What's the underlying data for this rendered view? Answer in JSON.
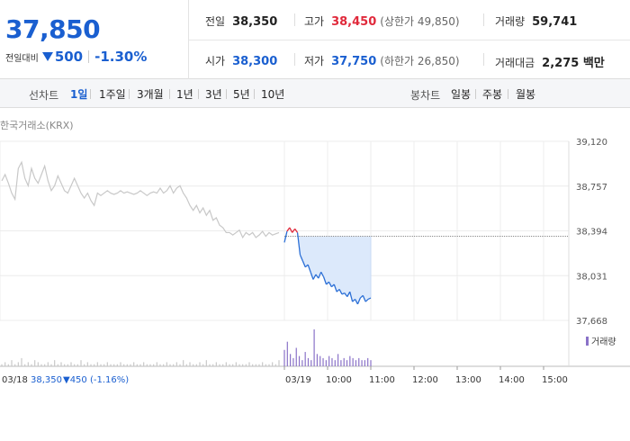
{
  "quote": {
    "price": "37,850",
    "change_label": "전일대비",
    "change_abs": "500",
    "change_pct": "-1.30%",
    "prev_close_label": "전일",
    "prev_close": "38,350",
    "high_label": "고가",
    "high": "38,450",
    "upper_limit": "(상한가 49,850)",
    "volume_label": "거래량",
    "volume": "59,741",
    "open_label": "시가",
    "open": "38,300",
    "low_label": "저가",
    "low": "37,750",
    "lower_limit": "(하한가 26,850)",
    "turnover_label": "거래대금",
    "turnover": "2,275 백만",
    "colors": {
      "up": "#e0293b",
      "down": "#1a5fd0"
    }
  },
  "tabs": {
    "line_label": "선차트",
    "line_periods": [
      "1일",
      "1주일",
      "3개월",
      "1년",
      "3년",
      "5년",
      "10년"
    ],
    "line_active": "1일",
    "candle_label": "봉차트",
    "candle_periods": [
      "일봉",
      "주봉",
      "월봉"
    ]
  },
  "chart": {
    "source": "한국거래소(KRX)",
    "volume_legend": "거래량",
    "footer_date": "03/18",
    "footer_price": "38,350",
    "footer_change": "▼450 (-1.16%)"
  },
  "chart_data": {
    "type": "line",
    "title": "",
    "xlabel": "",
    "ylabel": "",
    "y_ticks": [
      "39,120",
      "38,757",
      "38,394",
      "38,031",
      "37,668"
    ],
    "y_tick_values": [
      39120,
      38757,
      38394,
      38031,
      37668
    ],
    "ylim": [
      37668,
      39120
    ],
    "x_ticks": [
      "03/18",
      "03/19",
      "10:00",
      "11:00",
      "12:00",
      "13:00",
      "14:00",
      "15:00"
    ],
    "reference_price": 38350,
    "colors": {
      "prev_day": "#c8c8c8",
      "today": "#2b6fd6",
      "today_above_ref": "#e0293b",
      "fill": "#dce9fb",
      "volume": "#8a72c8"
    },
    "series": [
      {
        "values": [
          38800,
          38850,
          38780,
          38700,
          38650,
          38900,
          38950,
          38820,
          38760,
          38900,
          38820,
          38780,
          38850,
          38920,
          38800,
          38720,
          38760,
          38840,
          38780,
          38720,
          38700,
          38760,
          38820,
          38760,
          38700,
          38660,
          38700,
          38640,
          38600,
          38700,
          38680,
          38700,
          38720,
          38700,
          38690,
          38700,
          38720,
          38700,
          38710,
          38700,
          38690,
          38700,
          38720,
          38700,
          38680,
          38700,
          38710,
          38700,
          38740,
          38700,
          38720,
          38760,
          38700,
          38740,
          38760,
          38700,
          38660,
          38600,
          38560,
          38600,
          38540,
          38580,
          38520,
          38560,
          38480,
          38500,
          38440,
          38420,
          38380,
          38380,
          38360,
          38380,
          38400,
          38340,
          38380,
          38360,
          38380,
          38340,
          38360,
          38390,
          38350,
          38380,
          38360,
          38370,
          38380
        ]
      },
      {
        "values": [
          38300,
          38390,
          38420,
          38380,
          38410,
          38380,
          38200,
          38150,
          38100,
          38120,
          38060,
          38000,
          38040,
          38010,
          38060,
          38020,
          37960,
          37980,
          37940,
          37960,
          37900,
          37920,
          37880,
          37890,
          37860,
          37900,
          37820,
          37840,
          37800,
          37850,
          37870,
          37820,
          37840,
          37850
        ]
      }
    ],
    "volume": [
      1,
      2,
      1,
      3,
      1,
      2,
      4,
      1,
      2,
      1,
      3,
      2,
      1,
      1,
      2,
      1,
      3,
      1,
      2,
      1,
      1,
      2,
      1,
      1,
      3,
      1,
      2,
      1,
      1,
      2,
      1,
      1,
      2,
      1,
      1,
      1,
      2,
      1,
      1,
      1,
      2,
      1,
      1,
      2,
      1,
      1,
      1,
      2,
      1,
      1,
      2,
      1,
      1,
      2,
      1,
      3,
      1,
      2,
      1,
      1,
      2,
      1,
      3,
      1,
      1,
      2,
      1,
      1,
      2,
      1,
      1,
      2,
      1,
      1,
      1,
      2,
      1,
      1,
      1,
      2,
      1,
      1,
      2,
      1,
      3,
      8,
      12,
      6,
      4,
      9,
      5,
      3,
      7,
      4,
      3,
      18,
      6,
      5,
      4,
      3,
      5,
      4,
      3,
      6,
      3,
      4,
      3,
      5,
      4,
      3,
      4,
      3,
      3,
      4,
      3
    ]
  }
}
